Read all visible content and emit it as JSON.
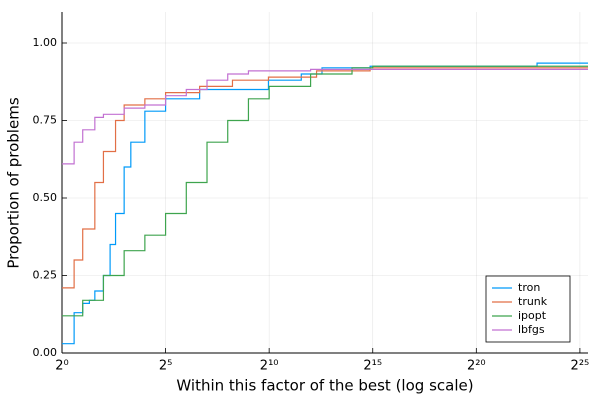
{
  "chart_data": {
    "type": "line",
    "step": "post",
    "xlabel": "Within this factor of the best (log scale)",
    "ylabel": "Proportion of problems",
    "xscale": "log",
    "xlog_base": 2,
    "xlim": [
      1,
      44000000
    ],
    "ylim": [
      0,
      1.1
    ],
    "xticks": [
      {
        "value": 1,
        "label": "2⁰"
      },
      {
        "value": 32,
        "label": "2⁵"
      },
      {
        "value": 1024,
        "label": "2¹⁰"
      },
      {
        "value": 32768,
        "label": "2¹⁵"
      },
      {
        "value": 1048576,
        "label": "2²⁰"
      },
      {
        "value": 33554432,
        "label": "2²⁵"
      }
    ],
    "yticks": [
      {
        "value": 0,
        "label": "0.00"
      },
      {
        "value": 0.25,
        "label": "0.25"
      },
      {
        "value": 0.5,
        "label": "0.50"
      },
      {
        "value": 0.75,
        "label": "0.75"
      },
      {
        "value": 1,
        "label": "1.00"
      }
    ],
    "grid": true,
    "legend": "lower right",
    "series": [
      {
        "name": "tron",
        "color": "#009af9",
        "x": [
          1,
          1.5,
          2,
          2.5,
          3,
          4,
          5,
          6,
          8,
          10,
          16,
          32,
          100,
          1000,
          3000,
          6000,
          30000,
          8000000,
          44000000
        ],
        "values": [
          0.03,
          0.13,
          0.16,
          0.17,
          0.2,
          0.25,
          0.35,
          0.45,
          0.6,
          0.68,
          0.78,
          0.82,
          0.85,
          0.88,
          0.9,
          0.92,
          0.925,
          0.935,
          0.935
        ]
      },
      {
        "name": "trunk",
        "color": "#e26f46",
        "x": [
          1,
          1.5,
          2,
          3,
          4,
          6,
          8,
          16,
          32,
          100,
          300,
          1000,
          5000,
          30000,
          44000000
        ],
        "values": [
          0.21,
          0.3,
          0.4,
          0.55,
          0.65,
          0.75,
          0.8,
          0.82,
          0.84,
          0.86,
          0.88,
          0.89,
          0.91,
          0.92,
          0.92
        ]
      },
      {
        "name": "ipopt",
        "color": "#3ea44e",
        "x": [
          1,
          2,
          4,
          8,
          16,
          32,
          64,
          128,
          256,
          512,
          1024,
          4096,
          16384,
          32768,
          44000000
        ],
        "values": [
          0.12,
          0.17,
          0.25,
          0.33,
          0.38,
          0.45,
          0.55,
          0.68,
          0.75,
          0.82,
          0.86,
          0.9,
          0.92,
          0.925,
          0.925
        ]
      },
      {
        "name": "lbfgs",
        "color": "#c271d2",
        "x": [
          1,
          1.5,
          2,
          3,
          4,
          8,
          16,
          32,
          64,
          128,
          256,
          512,
          4096,
          44000000
        ],
        "values": [
          0.61,
          0.68,
          0.72,
          0.76,
          0.77,
          0.79,
          0.8,
          0.83,
          0.85,
          0.88,
          0.9,
          0.91,
          0.915,
          0.915
        ]
      }
    ]
  }
}
